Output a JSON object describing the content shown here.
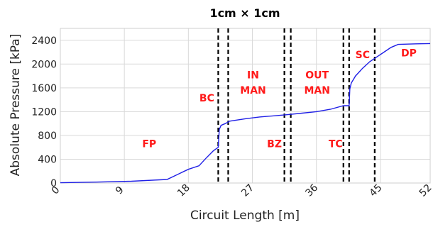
{
  "chart_data": {
    "type": "line",
    "title": "1cm × 1cm",
    "xlabel": "Circuit Length [m]",
    "ylabel": "Absolute Pressure [kPa]",
    "xlim": [
      0,
      52
    ],
    "ylim": [
      0,
      2600
    ],
    "xticks": [
      0,
      9,
      18,
      27,
      36,
      45,
      52
    ],
    "yticks": [
      0,
      400,
      800,
      1200,
      1600,
      2000,
      2400
    ],
    "grid": true,
    "series": [
      {
        "color": "#1f1fe6",
        "x": [
          0,
          5,
          10,
          15,
          18,
          19.5,
          20.5,
          21.5,
          22.2,
          22.35,
          22.6,
          23.2,
          23.8,
          26,
          28,
          30,
          32,
          34,
          36,
          38,
          39.8,
          40.6,
          40.7,
          40.9,
          41.5,
          42.5,
          43.5,
          44.5,
          45.5,
          46.5,
          47.5,
          50,
          52
        ],
        "y": [
          5,
          15,
          30,
          60,
          230,
          290,
          420,
          540,
          600,
          900,
          970,
          1000,
          1040,
          1080,
          1110,
          1130,
          1150,
          1175,
          1200,
          1240,
          1300,
          1300,
          1580,
          1680,
          1800,
          1930,
          2040,
          2120,
          2200,
          2280,
          2330,
          2340,
          2345
        ]
      }
    ],
    "vertical_lines": [
      22.2,
      23.6,
      31.5,
      32.4,
      39.8,
      40.6,
      44.2
    ],
    "regions": [
      {
        "label": "FP",
        "x": 12.5,
        "y": 600
      },
      {
        "label": "BC",
        "x": 20.6,
        "y": 1370
      },
      {
        "label": "IN",
        "x": 27.1,
        "y": 1760
      },
      {
        "label": "MAN",
        "x": 27.1,
        "y": 1500
      },
      {
        "label": "BZ",
        "x": 30.1,
        "y": 600
      },
      {
        "label": "OUT",
        "x": 36.1,
        "y": 1760
      },
      {
        "label": "MAN",
        "x": 36.1,
        "y": 1500
      },
      {
        "label": "TC",
        "x": 38.7,
        "y": 600
      },
      {
        "label": "SC",
        "x": 42.5,
        "y": 2100
      },
      {
        "label": "DP",
        "x": 49.0,
        "y": 2130
      }
    ]
  }
}
